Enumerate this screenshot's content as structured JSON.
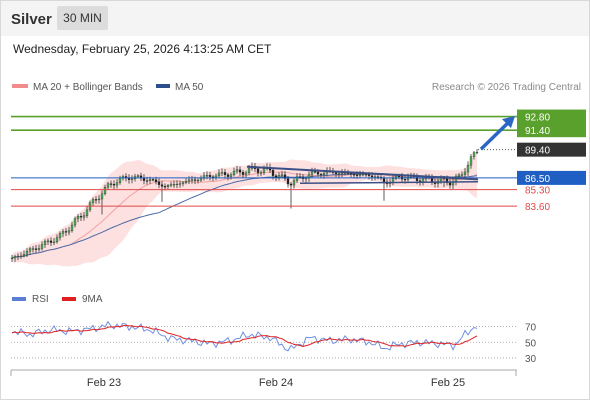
{
  "header": {
    "instrument": "Silver",
    "timeframe": "30 MIN",
    "datetime": "Wednesday, February 25, 2026 4:13:25 AM CET"
  },
  "legend": {
    "items": [
      {
        "label": "MA 20 + Bollinger Bands",
        "color": "#f28b8b"
      },
      {
        "label": "MA 50",
        "color": "#2c4f8c"
      }
    ],
    "copyright": "Research © 2026 Trading Central"
  },
  "rsi_legend": {
    "items": [
      {
        "label": "RSI",
        "color": "#5b7fd6"
      },
      {
        "label": "9MA",
        "color": "#e02020"
      }
    ]
  },
  "chart_data": [
    {
      "type": "candlestick",
      "x_tick_labels": [
        "Feb 23",
        "Feb 24",
        "Feb 25"
      ],
      "y_range": [
        75.5,
        94.5
      ],
      "levels": [
        {
          "value": 92.8,
          "label": "92.80",
          "kind": "resistance",
          "color": "#5aa02c"
        },
        {
          "value": 91.4,
          "label": "91.40",
          "kind": "resistance",
          "color": "#5aa02c"
        },
        {
          "value": 89.4,
          "label": "89.40",
          "kind": "last-price",
          "color": "#333333"
        },
        {
          "value": 86.5,
          "label": "86.50",
          "kind": "pivot",
          "color": "#1f5fc4"
        },
        {
          "value": 85.3,
          "label": "85.30",
          "kind": "support",
          "color": "#e04848"
        },
        {
          "value": 83.6,
          "label": "83.60",
          "kind": "support",
          "color": "#e04848"
        }
      ]
    },
    {
      "type": "line",
      "indicator": "RSI",
      "y_tick_labels": [
        "70",
        "50",
        "30"
      ],
      "y_ticks": [
        70,
        50,
        30
      ],
      "y_range": [
        12,
        90
      ],
      "series": [
        {
          "name": "RSI",
          "color": "#5b7fd6"
        },
        {
          "name": "9MA",
          "color": "#e02020"
        }
      ]
    }
  ]
}
